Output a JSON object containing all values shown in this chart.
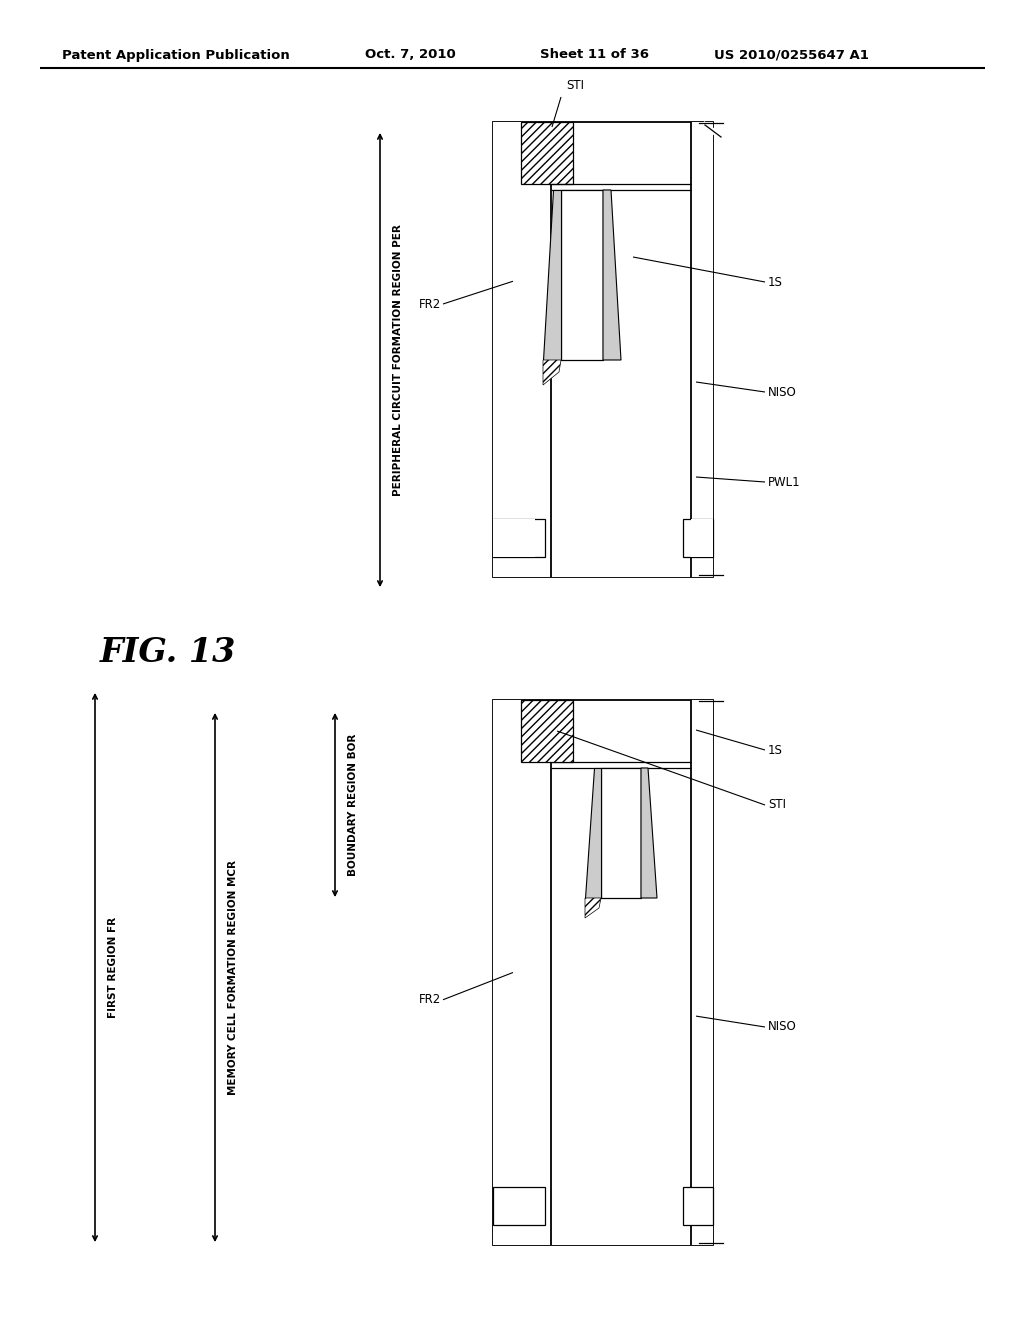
{
  "bg_color": "#ffffff",
  "header_left": "Patent Application Publication",
  "header_center": "Oct. 7, 2010",
  "header_right1": "Sheet 11 of 36",
  "header_right2": "US 2010/0255647 A1",
  "fig_label": "FIG. 13",
  "per_label": "PERIPHERAL CIRCUIT FORMATION REGION PER",
  "fr2_label": "FR2",
  "sti_label_top": "STI",
  "s1_label_top": "1S",
  "niso_label_top": "NISO",
  "pwl1_label": "PWL1",
  "fr_label": "FIRST REGION FR",
  "mcr_label": "MEMORY CELL FORMATION REGION MCR",
  "bor_label": "BOUNDARY REGION BOR",
  "fr2_label_bot": "FR2",
  "sti_label_bot": "STI",
  "s1_label_bot": "1S",
  "niso_label_bot": "NISO"
}
